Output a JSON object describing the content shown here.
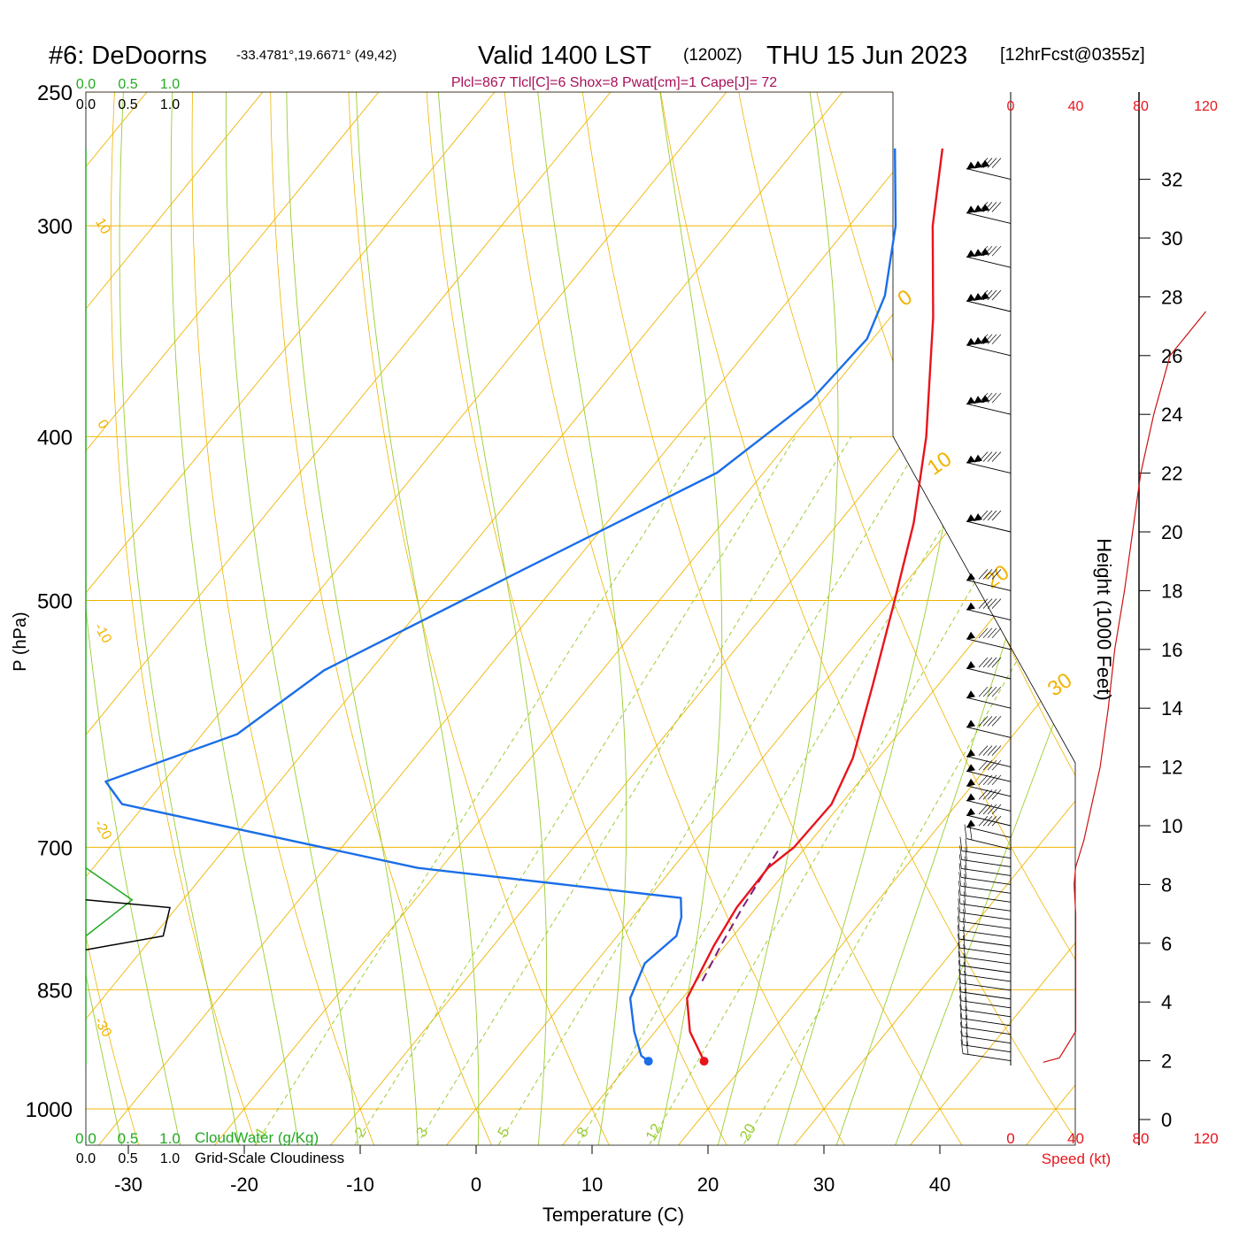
{
  "header": {
    "station": "#6: DeDoorns",
    "coords": "-33.4781°,19.6671° (49,42)",
    "valid": "Valid 1400 LST",
    "zulu": "(1200Z)",
    "date": "THU 15 Jun 2023",
    "forecast": "[12hrFcst@0355z]",
    "indices": "Plcl=867 Tlcl[C]=6 Shox=8 Pwat[cm]=1 Cape[J]= 72"
  },
  "colors": {
    "temperature": "#e8141c",
    "dewpoint": "#1a6ee8",
    "isobar": "#f0b400",
    "dry_adiabat": "#9acd32",
    "mixing_ratio": "#9acd32",
    "parcel": "#7b1f7b",
    "cloud_water": "#22aa22",
    "wind_speed": "#cc1111"
  },
  "chart_data": [
    {
      "type": "line",
      "name": "skew-t-log-p",
      "xlabel": "Temperature (C)",
      "ylabel": "P (hPa)",
      "x_ticks": [
        -30,
        -20,
        -10,
        0,
        10,
        20,
        30,
        40
      ],
      "y_ticks": [
        250,
        300,
        400,
        500,
        700,
        850,
        1000
      ],
      "mixing_ratio_labels": [
        "1",
        "2",
        "3",
        "5",
        "8",
        "12",
        "20"
      ],
      "mixing_ratio_values": [
        1,
        2,
        3,
        5,
        8,
        12,
        20
      ],
      "dry_adiabat_labels": [
        "10",
        "0",
        "-10",
        "-20",
        "-30"
      ],
      "isotherm_labels": [
        "0",
        "10",
        "20",
        "30"
      ],
      "temperature": [
        [
          937,
          16.3
        ],
        [
          900,
          13.0
        ],
        [
          860,
          10.4
        ],
        [
          800,
          9.0
        ],
        [
          760,
          8.3
        ],
        [
          720,
          8.2
        ],
        [
          700,
          9.0
        ],
        [
          660,
          9.2
        ],
        [
          620,
          7.8
        ],
        [
          560,
          4.3
        ],
        [
          500,
          0.3
        ],
        [
          450,
          -3.5
        ],
        [
          400,
          -8.5
        ],
        [
          340,
          -16.3
        ],
        [
          300,
          -22.8
        ],
        [
          270,
          -27.4
        ]
      ],
      "dewpoint": [
        [
          937,
          11.5
        ],
        [
          930,
          10.5
        ],
        [
          900,
          8.2
        ],
        [
          860,
          5.5
        ],
        [
          820,
          4.3
        ],
        [
          790,
          5.1
        ],
        [
          770,
          4.2
        ],
        [
          750,
          2.8
        ],
        [
          720,
          -22.0
        ],
        [
          660,
          -52.0
        ],
        [
          640,
          -55.0
        ],
        [
          600,
          -47.0
        ],
        [
          550,
          -44.0
        ],
        [
          480,
          -34.0
        ],
        [
          420,
          -24.0
        ],
        [
          380,
          -21.0
        ],
        [
          350,
          -20.5
        ],
        [
          330,
          -22.0
        ],
        [
          300,
          -26.0
        ],
        [
          270,
          -31.5
        ]
      ],
      "parcel": [
        [
          840,
          10.5
        ],
        [
          800,
          9.6
        ],
        [
          760,
          8.8
        ],
        [
          700,
          7.8
        ]
      ],
      "surface_markers": {
        "temperature": [
          937,
          16.3
        ],
        "dewpoint": [
          937,
          11.5
        ]
      }
    },
    {
      "type": "area",
      "name": "cloud-water-and-cloudiness",
      "ticks": [
        "0.0",
        "0.5",
        "1.0"
      ],
      "cloud_water_label": "CloudWater (g/Kg)",
      "cloudiness_label": "Grid-Scale Cloudiness",
      "cloud_water": [
        [
          720,
          0.0
        ],
        [
          752,
          0.55
        ],
        [
          790,
          0.0
        ]
      ],
      "cloudiness": [
        [
          752,
          0.0
        ],
        [
          760,
          1.0
        ],
        [
          790,
          0.92
        ],
        [
          805,
          0.0
        ]
      ]
    },
    {
      "type": "line",
      "name": "wind-speed-profile",
      "xlabel": "Speed (kt)",
      "ylabel": "Height (1000 Feet)",
      "x_ticks": [
        "0",
        "40",
        "80",
        "120"
      ],
      "x_tick_values": [
        0,
        40,
        80,
        120
      ],
      "y_ticks": [
        "0",
        "2",
        "4",
        "6",
        "8",
        "10",
        "12",
        "14",
        "16",
        "18",
        "20",
        "22",
        "24",
        "26",
        "28",
        "30",
        "32"
      ],
      "y_tick_values": [
        0,
        2,
        4,
        6,
        8,
        10,
        12,
        14,
        16,
        18,
        20,
        22,
        24,
        26,
        28,
        30,
        32
      ],
      "speed": [
        [
          1.95,
          20
        ],
        [
          2.1,
          30
        ],
        [
          3.0,
          40
        ],
        [
          5.0,
          40
        ],
        [
          7.0,
          40
        ],
        [
          8.0,
          39
        ],
        [
          8.6,
          40
        ],
        [
          9.5,
          45
        ],
        [
          12.0,
          55
        ],
        [
          14.0,
          60
        ],
        [
          16.0,
          64
        ],
        [
          18.0,
          70
        ],
        [
          20.0,
          75
        ],
        [
          22.0,
          80
        ],
        [
          24.0,
          88
        ],
        [
          26.0,
          98
        ],
        [
          27.5,
          120
        ]
      ],
      "wind_barb_heights": [
        2.0,
        2.3,
        2.6,
        2.9,
        3.2,
        3.5,
        3.8,
        4.1,
        4.4,
        4.7,
        5.0,
        5.3,
        5.6,
        5.9,
        6.2,
        6.5,
        6.8,
        7.1,
        7.4,
        7.7,
        8.0,
        8.3,
        8.6,
        8.9,
        9.2,
        9.6,
        10.0,
        10.5,
        11.0,
        11.5,
        12.0,
        13.0,
        14.0,
        15.0,
        16.0,
        17.0,
        18.0,
        20.0,
        22.0,
        24.0,
        26.0,
        27.5,
        29.0,
        30.5,
        32.0
      ]
    }
  ]
}
